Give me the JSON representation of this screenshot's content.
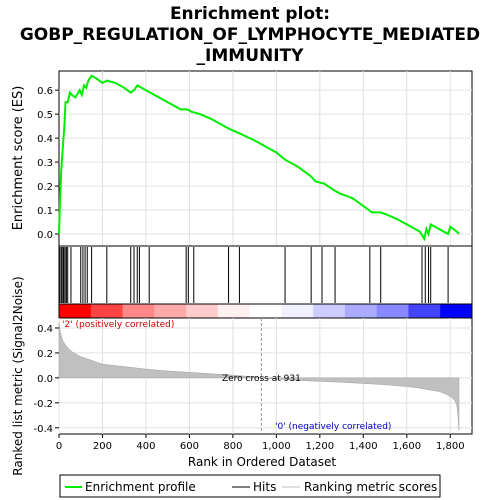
{
  "title_line1": "Enrichment plot:",
  "title_line2": "GOBP_REGULATION_OF_LYMPHOCYTE_MEDIATED",
  "title_line3": "_IMMUNITY",
  "chart_data": [
    {
      "type": "line",
      "ylabel": "Enrichment score (ES)",
      "xlim": [
        0,
        1900
      ],
      "ylim": [
        -0.05,
        0.68
      ],
      "yticks": [
        "0.0",
        "0.1",
        "0.2",
        "0.3",
        "0.4",
        "0.5",
        "0.6"
      ],
      "ytick_values": [
        0.0,
        0.1,
        0.2,
        0.3,
        0.4,
        0.5,
        0.6
      ],
      "grid": true,
      "series": [
        {
          "name": "Enrichment profile",
          "color": "#00ee00",
          "x": [
            0,
            5,
            10,
            15,
            20,
            25,
            30,
            40,
            50,
            60,
            75,
            95,
            105,
            115,
            125,
            135,
            150,
            170,
            200,
            220,
            260,
            300,
            330,
            345,
            360,
            380,
            400,
            440,
            500,
            560,
            590,
            610,
            650,
            700,
            780,
            830,
            900,
            1000,
            1040,
            1100,
            1160,
            1180,
            1220,
            1270,
            1290,
            1350,
            1410,
            1440,
            1480,
            1510,
            1560,
            1620,
            1660,
            1680,
            1690,
            1700,
            1710,
            1730,
            1790,
            1800,
            1830,
            1840
          ],
          "y": [
            0.0,
            0.15,
            0.26,
            0.33,
            0.39,
            0.45,
            0.55,
            0.55,
            0.59,
            0.58,
            0.57,
            0.6,
            0.58,
            0.62,
            0.61,
            0.64,
            0.66,
            0.65,
            0.63,
            0.64,
            0.63,
            0.61,
            0.59,
            0.6,
            0.62,
            0.61,
            0.6,
            0.58,
            0.55,
            0.52,
            0.52,
            0.51,
            0.5,
            0.48,
            0.44,
            0.42,
            0.39,
            0.34,
            0.31,
            0.28,
            0.24,
            0.22,
            0.21,
            0.18,
            0.17,
            0.15,
            0.11,
            0.09,
            0.09,
            0.08,
            0.06,
            0.03,
            0.01,
            -0.02,
            0.02,
            0.0,
            0.04,
            0.03,
            0.0,
            0.03,
            0.01,
            0.0
          ]
        }
      ]
    },
    {
      "type": "hits",
      "name": "Hits",
      "x": [
        5,
        12,
        18,
        22,
        28,
        34,
        40,
        55,
        100,
        110,
        120,
        130,
        150,
        220,
        330,
        345,
        360,
        370,
        415,
        585,
        595,
        620,
        780,
        830,
        1040,
        1160,
        1210,
        1270,
        1430,
        1480,
        1670,
        1685,
        1700,
        1710,
        1790
      ]
    },
    {
      "type": "area",
      "ylabel": "Ranked list metric (Signal2Noise)",
      "xlabel": "Rank in Ordered Dataset",
      "xlim": [
        0,
        1900
      ],
      "ylim": [
        -0.45,
        0.48
      ],
      "xticks": [
        "0",
        "200",
        "400",
        "600",
        "800",
        "1,000",
        "1,200",
        "1,400",
        "1,600",
        "1,800"
      ],
      "xtick_values": [
        0,
        200,
        400,
        600,
        800,
        1000,
        1200,
        1400,
        1600,
        1800
      ],
      "yticks": [
        "0.4",
        "0.2",
        "0.0",
        "-0.2",
        "-0.4"
      ],
      "ytick_values": [
        0.4,
        0.2,
        0.0,
        -0.2,
        -0.4
      ],
      "series": [
        {
          "name": "Ranking metric scores",
          "color": "#c0c0c0",
          "x": [
            0,
            5,
            10,
            20,
            40,
            60,
            100,
            150,
            200,
            300,
            400,
            500,
            600,
            700,
            800,
            900,
            931,
            1000,
            1100,
            1200,
            1300,
            1400,
            1500,
            1600,
            1650,
            1700,
            1750,
            1780,
            1800,
            1820,
            1830,
            1835,
            1840
          ],
          "y": [
            0.45,
            0.38,
            0.34,
            0.29,
            0.24,
            0.21,
            0.17,
            0.14,
            0.11,
            0.09,
            0.07,
            0.055,
            0.045,
            0.033,
            0.022,
            0.008,
            0.0,
            -0.01,
            -0.02,
            -0.028,
            -0.035,
            -0.045,
            -0.055,
            -0.07,
            -0.08,
            -0.095,
            -0.11,
            -0.13,
            -0.15,
            -0.18,
            -0.22,
            -0.3,
            -0.42
          ]
        }
      ],
      "annotations": {
        "zero_cross": "Zero cross at 931",
        "zero_cross_x": 931,
        "pos_label": "'2' (positively correlated)",
        "neg_label": "'0' (negatively correlated)"
      }
    }
  ],
  "colors": {
    "es_line": "#00ee00",
    "hits": "#000000",
    "pos_text": "#cc0000",
    "neg_text": "#0000cc",
    "metric_fill": "#c0c0c0",
    "grid": "#e0e0e0"
  },
  "colorbar": [
    "#ff0000",
    "#ff4444",
    "#ff8888",
    "#ffaaaa",
    "#ffcccc",
    "#fff0f0",
    "#ffffff",
    "#f0f0ff",
    "#ccccff",
    "#aaaaff",
    "#8888ff",
    "#4444ff",
    "#0000ff"
  ],
  "legend": {
    "es": "Enrichment profile",
    "hits": "Hits",
    "metric": "Ranking metric scores"
  }
}
